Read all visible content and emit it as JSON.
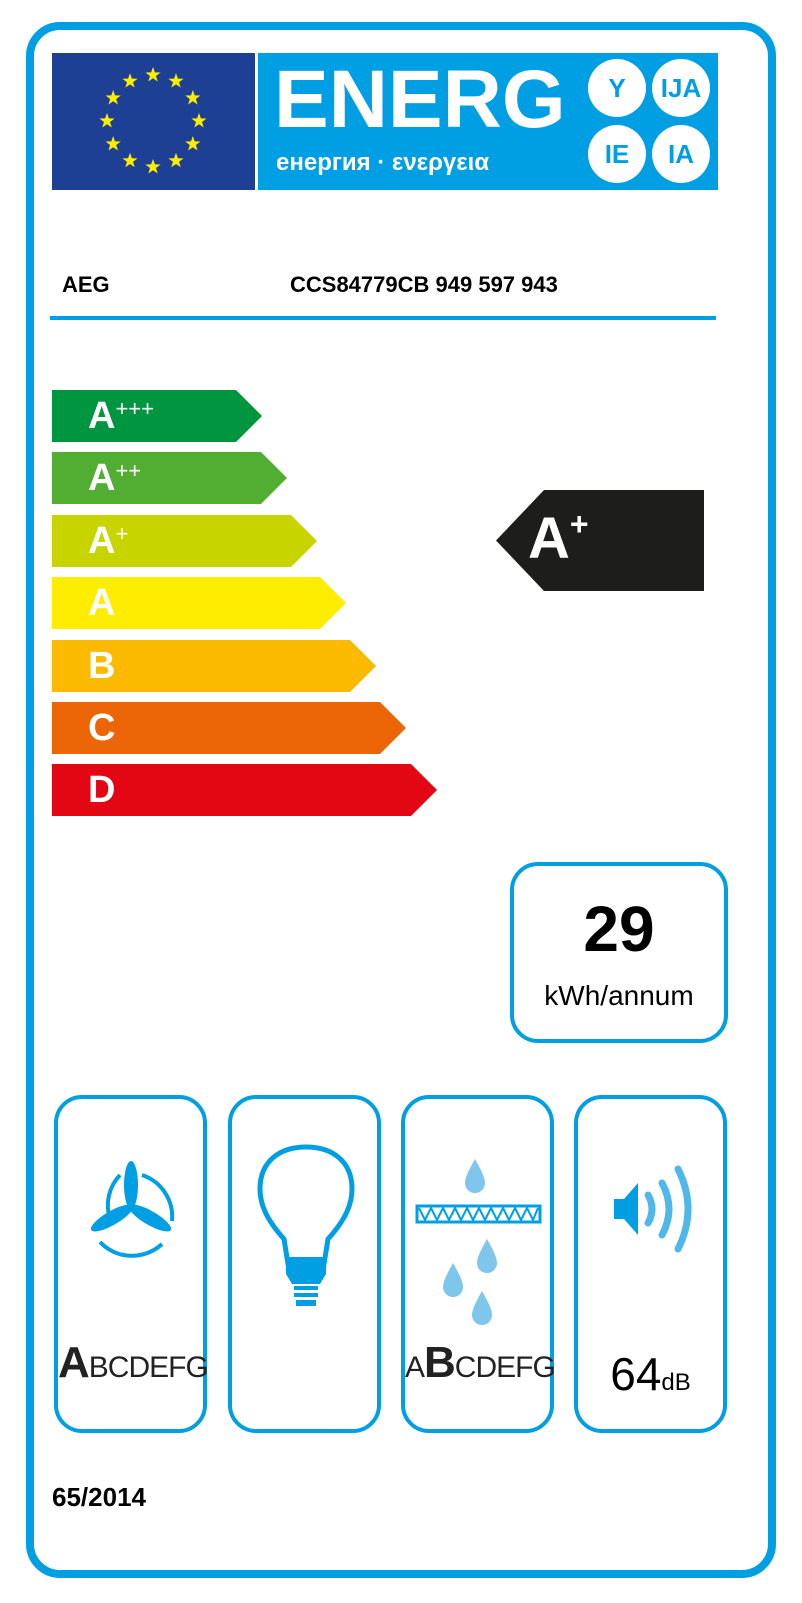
{
  "header": {
    "logo_main": "ENERG",
    "logo_sub": "енергия · ενεργεια",
    "language_badges": [
      "Y",
      "IJA",
      "IE",
      "IA"
    ],
    "flag": "eu-flag"
  },
  "product": {
    "brand": "AEG",
    "model": "CCS84779CB  949 597 943"
  },
  "scale": [
    {
      "label": "A",
      "plus": "+++",
      "color": "#00963f"
    },
    {
      "label": "A",
      "plus": "++",
      "color": "#52ae32"
    },
    {
      "label": "A",
      "plus": "+",
      "color": "#c8d400"
    },
    {
      "label": "A",
      "plus": "",
      "color": "#ffed00"
    },
    {
      "label": "B",
      "plus": "",
      "color": "#fbba00"
    },
    {
      "label": "C",
      "plus": "",
      "color": "#ec6608"
    },
    {
      "label": "D",
      "plus": "",
      "color": "#e30613"
    }
  ],
  "rating": {
    "label": "A",
    "plus": "+",
    "color": "#1d1d1b"
  },
  "consumption": {
    "value": "29",
    "unit": "kWh/annum"
  },
  "pictograms": {
    "fluid_dynamic": {
      "icon": "fan-icon",
      "scale_selected": "A",
      "scale_rest": "BCDEFG"
    },
    "lighting": {
      "icon": "light-bulb-icon"
    },
    "grease_filtering": {
      "icon": "grease-filter-icon",
      "scale_before": "A",
      "scale_selected": "B",
      "scale_rest": "CDEFG"
    },
    "noise": {
      "icon": "speaker-icon",
      "value": "64",
      "unit": "dB"
    }
  },
  "regulation": "65/2014",
  "accent_color": "#009fe3"
}
